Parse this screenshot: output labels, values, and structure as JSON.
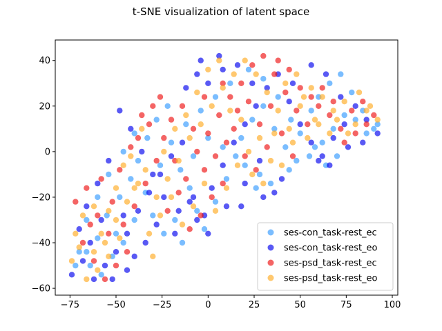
{
  "chart_data": {
    "type": "scatter",
    "title": "t-SNE visualization of latent space",
    "xlabel": "",
    "ylabel": "",
    "xlim": [
      -83,
      103
    ],
    "ylim": [
      -63,
      49
    ],
    "xticks": [
      -75,
      -50,
      -25,
      0,
      25,
      50,
      75,
      100
    ],
    "yticks": [
      -60,
      -40,
      -20,
      0,
      20,
      40
    ],
    "grid": false,
    "legend_position": "lower-right",
    "series": [
      {
        "name": "ses-con_task-rest_ec",
        "color": "#3399ff",
        "points": [
          [
            -72,
            -50
          ],
          [
            -66,
            -44
          ],
          [
            -60,
            -38
          ],
          [
            -55,
            -28
          ],
          [
            -48,
            -20
          ],
          [
            -42,
            -12
          ],
          [
            -38,
            -4
          ],
          [
            -33,
            6
          ],
          [
            -28,
            14
          ],
          [
            -22,
            20
          ],
          [
            -15,
            -8
          ],
          [
            -10,
            -16
          ],
          [
            -6,
            -26
          ],
          [
            -2,
            -34
          ],
          [
            4,
            -22
          ],
          [
            10,
            -12
          ],
          [
            15,
            -2
          ],
          [
            18,
            6
          ],
          [
            24,
            14
          ],
          [
            30,
            20
          ],
          [
            36,
            10
          ],
          [
            42,
            2
          ],
          [
            48,
            -4
          ],
          [
            55,
            -2
          ],
          [
            62,
            4
          ],
          [
            68,
            10
          ],
          [
            74,
            16
          ],
          [
            80,
            14
          ],
          [
            86,
            8
          ],
          [
            90,
            10
          ],
          [
            70,
            -2
          ],
          [
            64,
            -6
          ],
          [
            58,
            2
          ],
          [
            45,
            14
          ],
          [
            38,
            24
          ],
          [
            30,
            32
          ],
          [
            22,
            36
          ],
          [
            12,
            30
          ],
          [
            4,
            24
          ],
          [
            -4,
            18
          ],
          [
            -12,
            12
          ],
          [
            -20,
            4
          ],
          [
            -26,
            -6
          ],
          [
            -34,
            -18
          ],
          [
            -40,
            -30
          ],
          [
            -46,
            -40
          ],
          [
            -52,
            -46
          ],
          [
            -58,
            -54
          ],
          [
            -64,
            -50
          ],
          [
            -70,
            -44
          ],
          [
            -66,
            -30
          ],
          [
            -60,
            -20
          ],
          [
            -54,
            -10
          ],
          [
            -46,
            0
          ],
          [
            -40,
            8
          ],
          [
            -30,
            -28
          ],
          [
            -24,
            -36
          ],
          [
            -18,
            -30
          ],
          [
            -8,
            -2
          ],
          [
            0,
            6
          ],
          [
            8,
            2
          ],
          [
            20,
            -6
          ],
          [
            28,
            -10
          ],
          [
            34,
            -14
          ],
          [
            44,
            -8
          ],
          [
            50,
            8
          ],
          [
            56,
            18
          ],
          [
            60,
            24
          ],
          [
            66,
            30
          ],
          [
            72,
            34
          ],
          [
            78,
            26
          ],
          [
            84,
            18
          ],
          [
            92,
            12
          ],
          [
            26,
            -16
          ],
          [
            -14,
            -40
          ],
          [
            -50,
            -36
          ]
        ]
      },
      {
        "name": "ses-con_task-rest_eo",
        "color": "#0000ee",
        "points": [
          [
            -74,
            -54
          ],
          [
            -68,
            -48
          ],
          [
            -62,
            -56
          ],
          [
            -56,
            -50
          ],
          [
            -50,
            -44
          ],
          [
            -44,
            -36
          ],
          [
            -38,
            -26
          ],
          [
            -32,
            -18
          ],
          [
            -26,
            -10
          ],
          [
            -20,
            -2
          ],
          [
            -14,
            4
          ],
          [
            -8,
            -20
          ],
          [
            -2,
            -28
          ],
          [
            2,
            -16
          ],
          [
            8,
            -6
          ],
          [
            14,
            4
          ],
          [
            20,
            12
          ],
          [
            26,
            20
          ],
          [
            32,
            28
          ],
          [
            38,
            34
          ],
          [
            44,
            22
          ],
          [
            50,
            12
          ],
          [
            56,
            4
          ],
          [
            62,
            -2
          ],
          [
            68,
            6
          ],
          [
            74,
            12
          ],
          [
            80,
            20
          ],
          [
            86,
            14
          ],
          [
            92,
            8
          ],
          [
            72,
            24
          ],
          [
            64,
            34
          ],
          [
            56,
            38
          ],
          [
            46,
            30
          ],
          [
            40,
            -12
          ],
          [
            36,
            -18
          ],
          [
            30,
            -20
          ],
          [
            20,
            -14
          ],
          [
            10,
            -24
          ],
          [
            0,
            -36
          ],
          [
            -6,
            -30
          ],
          [
            -16,
            -26
          ],
          [
            -24,
            -20
          ],
          [
            -30,
            -10
          ],
          [
            -36,
            0
          ],
          [
            -42,
            10
          ],
          [
            -48,
            18
          ],
          [
            -54,
            -4
          ],
          [
            -60,
            -14
          ],
          [
            -66,
            -24
          ],
          [
            -70,
            -34
          ],
          [
            -64,
            -40
          ],
          [
            -58,
            -30
          ],
          [
            -46,
            -28
          ],
          [
            -40,
            -46
          ],
          [
            -34,
            -40
          ],
          [
            -28,
            -32
          ],
          [
            -4,
            40
          ],
          [
            6,
            42
          ],
          [
            16,
            38
          ],
          [
            24,
            30
          ],
          [
            60,
            -4
          ],
          [
            66,
            -6
          ],
          [
            76,
            2
          ],
          [
            84,
            4
          ],
          [
            -52,
            -56
          ],
          [
            -44,
            -52
          ],
          [
            -12,
            28
          ],
          [
            -6,
            34
          ],
          [
            0,
            30
          ],
          [
            8,
            36
          ],
          [
            28,
            -4
          ],
          [
            18,
            -24
          ],
          [
            -18,
            -36
          ],
          [
            -10,
            -22
          ]
        ]
      },
      {
        "name": "ses-psd_task-rest_ec",
        "color": "#ee1111",
        "points": [
          [
            -72,
            -22
          ],
          [
            -66,
            -16
          ],
          [
            -60,
            -28
          ],
          [
            -54,
            -36
          ],
          [
            -48,
            -8
          ],
          [
            -42,
            2
          ],
          [
            -36,
            16
          ],
          [
            -30,
            20
          ],
          [
            -24,
            6
          ],
          [
            -18,
            -4
          ],
          [
            -12,
            -12
          ],
          [
            -6,
            0
          ],
          [
            0,
            8
          ],
          [
            6,
            16
          ],
          [
            12,
            24
          ],
          [
            18,
            30
          ],
          [
            24,
            38
          ],
          [
            30,
            42
          ],
          [
            36,
            34
          ],
          [
            42,
            26
          ],
          [
            48,
            18
          ],
          [
            54,
            12
          ],
          [
            60,
            20
          ],
          [
            66,
            16
          ],
          [
            72,
            10
          ],
          [
            78,
            18
          ],
          [
            84,
            22
          ],
          [
            90,
            16
          ],
          [
            50,
            28
          ],
          [
            44,
            36
          ],
          [
            38,
            40
          ],
          [
            32,
            2
          ],
          [
            26,
            -8
          ],
          [
            20,
            -2
          ],
          [
            14,
            10
          ],
          [
            8,
            -14
          ],
          [
            2,
            -20
          ],
          [
            -4,
            -28
          ],
          [
            -10,
            -34
          ],
          [
            -16,
            -18
          ],
          [
            -22,
            -26
          ],
          [
            -28,
            -4
          ],
          [
            -34,
            -14
          ],
          [
            -40,
            -24
          ],
          [
            -46,
            -32
          ],
          [
            -52,
            -22
          ],
          [
            -58,
            -12
          ],
          [
            -64,
            -32
          ],
          [
            -68,
            -40
          ],
          [
            -62,
            -48
          ],
          [
            -56,
            -56
          ],
          [
            -50,
            -50
          ],
          [
            -44,
            -44
          ],
          [
            -38,
            6
          ],
          [
            -32,
            12
          ],
          [
            -26,
            24
          ],
          [
            -20,
            14
          ],
          [
            -14,
            20
          ],
          [
            -8,
            10
          ],
          [
            -2,
            -8
          ],
          [
            4,
            -2
          ],
          [
            10,
            4
          ],
          [
            16,
            18
          ],
          [
            22,
            22
          ],
          [
            28,
            12
          ],
          [
            34,
            20
          ],
          [
            40,
            8
          ],
          [
            46,
            -2
          ],
          [
            56,
            24
          ],
          [
            62,
            28
          ],
          [
            68,
            22
          ],
          [
            74,
            4
          ],
          [
            80,
            8
          ],
          [
            86,
            12
          ],
          [
            8,
            30
          ],
          [
            -2,
            24
          ]
        ]
      },
      {
        "name": "ses-psd_task-rest_eo",
        "color": "#ffaa22",
        "points": [
          [
            -74,
            -48
          ],
          [
            -70,
            -42
          ],
          [
            -66,
            -56
          ],
          [
            -62,
            -44
          ],
          [
            -58,
            -36
          ],
          [
            -54,
            -26
          ],
          [
            -50,
            -16
          ],
          [
            -46,
            -6
          ],
          [
            -40,
            -16
          ],
          [
            -34,
            -8
          ],
          [
            -28,
            -20
          ],
          [
            -22,
            -12
          ],
          [
            -16,
            -4
          ],
          [
            -10,
            6
          ],
          [
            -4,
            12
          ],
          [
            2,
            20
          ],
          [
            8,
            28
          ],
          [
            14,
            34
          ],
          [
            20,
            40
          ],
          [
            26,
            34
          ],
          [
            32,
            26
          ],
          [
            38,
            18
          ],
          [
            44,
            10
          ],
          [
            50,
            20
          ],
          [
            56,
            28
          ],
          [
            62,
            24
          ],
          [
            68,
            18
          ],
          [
            74,
            22
          ],
          [
            80,
            12
          ],
          [
            86,
            18
          ],
          [
            92,
            14
          ],
          [
            66,
            8
          ],
          [
            58,
            14
          ],
          [
            52,
            24
          ],
          [
            46,
            4
          ],
          [
            40,
            -6
          ],
          [
            34,
            -4
          ],
          [
            28,
            6
          ],
          [
            22,
            0
          ],
          [
            16,
            -6
          ],
          [
            10,
            -16
          ],
          [
            4,
            -26
          ],
          [
            -2,
            -14
          ],
          [
            -8,
            -24
          ],
          [
            -14,
            -32
          ],
          [
            -20,
            -20
          ],
          [
            -26,
            -28
          ],
          [
            -32,
            -36
          ],
          [
            -38,
            -14
          ],
          [
            -44,
            -22
          ],
          [
            -50,
            -30
          ],
          [
            -56,
            -40
          ],
          [
            -62,
            -24
          ],
          [
            -68,
            -28
          ],
          [
            -72,
            -36
          ],
          [
            -60,
            -52
          ],
          [
            -54,
            -46
          ],
          [
            -48,
            -38
          ],
          [
            -30,
            -46
          ],
          [
            -36,
            10
          ],
          [
            -42,
            -2
          ],
          [
            -24,
            0
          ],
          [
            -18,
            10
          ],
          [
            -12,
            16
          ],
          [
            -6,
            26
          ],
          [
            0,
            36
          ],
          [
            6,
            40
          ],
          [
            12,
            18
          ],
          [
            18,
            14
          ],
          [
            24,
            -10
          ],
          [
            30,
            -14
          ],
          [
            36,
            8
          ],
          [
            42,
            30
          ],
          [
            48,
            34
          ],
          [
            54,
            6
          ],
          [
            60,
            12
          ],
          [
            70,
            14
          ],
          [
            76,
            8
          ],
          [
            82,
            26
          ],
          [
            88,
            20
          ]
        ]
      }
    ]
  }
}
